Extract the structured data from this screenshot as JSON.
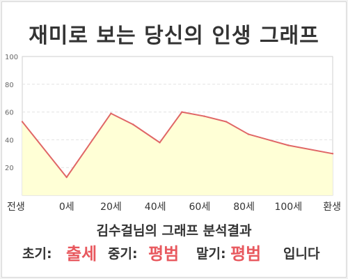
{
  "title": "재미로 보는 당신의 인생 그래프",
  "subtitle": "김수걸님의 그래프 분석결과",
  "results": {
    "early_label": "초기:",
    "early_value": "출세",
    "mid_label": "중기:",
    "mid_value": "평범",
    "late_label": "말기:",
    "late_value": "평범",
    "ending": "입니다"
  },
  "colors": {
    "line": "#e06666",
    "fill": "#ffffd6",
    "accent_text": "#e8585e"
  },
  "chart_data": {
    "type": "area",
    "title": "재미로 보는 당신의 인생 그래프",
    "xlabel": "",
    "ylabel": "",
    "ylim": [
      0,
      100
    ],
    "yticks": [
      20,
      40,
      60,
      80,
      100
    ],
    "x_tick_labels": [
      "전생",
      "0세",
      "20세",
      "40세",
      "60세",
      "80세",
      "100세",
      "환생"
    ],
    "x_tick_index": [
      0,
      1,
      2,
      3,
      4,
      5,
      6,
      7
    ],
    "grid": true,
    "legend": "none",
    "points": [
      {
        "x": 0,
        "y": 53
      },
      {
        "x": 1,
        "y": 13
      },
      {
        "x": 2,
        "y": 59
      },
      {
        "x": 2.5,
        "y": 51
      },
      {
        "x": 3.1,
        "y": 38
      },
      {
        "x": 3.6,
        "y": 60
      },
      {
        "x": 4.1,
        "y": 57
      },
      {
        "x": 4.6,
        "y": 53
      },
      {
        "x": 5.1,
        "y": 44
      },
      {
        "x": 6,
        "y": 36
      },
      {
        "x": 7,
        "y": 30
      }
    ]
  }
}
